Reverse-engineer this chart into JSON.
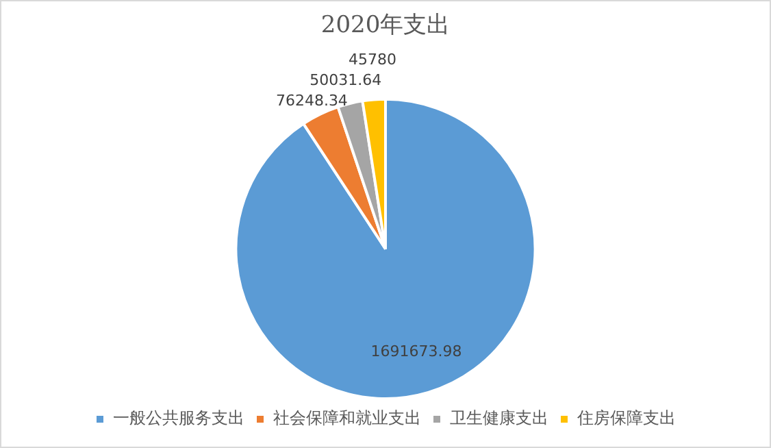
{
  "chart_data": {
    "type": "pie",
    "title": "2020年支出",
    "categories": [
      "一般公共服务支出",
      "社会保障和就业支出",
      "卫生健康支出",
      "住房保障支出"
    ],
    "values": [
      1691673.98,
      76248.34,
      50031.64,
      45780
    ],
    "colors": [
      "#5b9bd5",
      "#ed7d31",
      "#a5a5a5",
      "#ffc000"
    ],
    "data_labels": true,
    "legend": "bottom"
  }
}
